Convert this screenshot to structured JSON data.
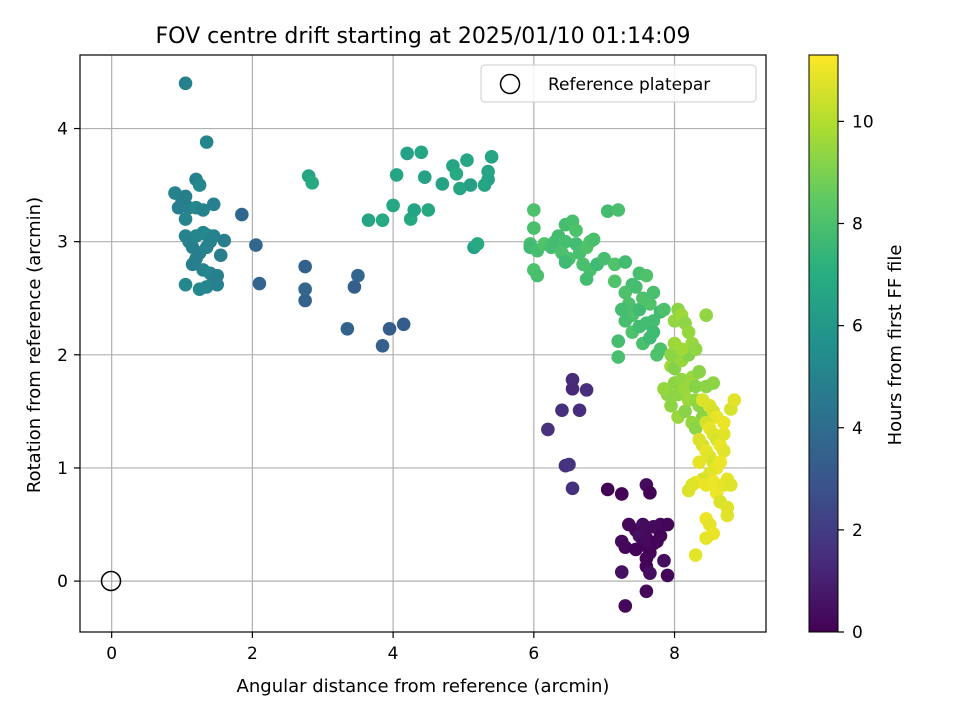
{
  "chart_data": {
    "type": "scatter",
    "title": "FOV centre drift starting at 2025/01/10 01:14:09",
    "xlabel": "Angular distance from reference (arcmin)",
    "ylabel": "Rotation from reference (arcmin)",
    "xlim": [
      -0.45,
      9.3
    ],
    "ylim": [
      -0.45,
      4.65
    ],
    "xticks": [
      "0",
      "2",
      "4",
      "6",
      "8"
    ],
    "yticks": [
      "0",
      "1",
      "2",
      "3",
      "4"
    ],
    "grid": true,
    "legend": {
      "position": "top-right",
      "entries": [
        "Reference platepar"
      ]
    },
    "reference_point": {
      "x": 0,
      "y": 0
    },
    "colorbar": {
      "label": "Hours from first FF file",
      "colormap": "viridis",
      "range": [
        0,
        11.3
      ],
      "ticks": [
        "0",
        "2",
        "4",
        "6",
        "8",
        "10"
      ]
    },
    "clusters": [
      {
        "t": 0.3,
        "points": [
          [
            7.05,
            0.81
          ],
          [
            7.25,
            0.77
          ],
          [
            7.6,
            0.85
          ],
          [
            7.65,
            0.78
          ],
          [
            7.35,
            0.5
          ],
          [
            7.45,
            0.45
          ],
          [
            7.5,
            0.4
          ],
          [
            7.55,
            0.5
          ],
          [
            7.6,
            0.47
          ],
          [
            7.7,
            0.48
          ],
          [
            7.8,
            0.5
          ],
          [
            7.9,
            0.5
          ],
          [
            7.25,
            0.35
          ],
          [
            7.3,
            0.3
          ],
          [
            7.55,
            0.32
          ],
          [
            7.6,
            0.38
          ],
          [
            7.7,
            0.33
          ],
          [
            7.75,
            0.35
          ],
          [
            7.6,
            0.2
          ],
          [
            7.65,
            0.25
          ],
          [
            7.6,
            0.13
          ],
          [
            7.85,
            0.18
          ],
          [
            7.25,
            0.08
          ],
          [
            7.65,
            0.07
          ],
          [
            7.9,
            0.05
          ],
          [
            7.6,
            -0.09
          ],
          [
            7.3,
            -0.22
          ],
          [
            7.8,
            0.4
          ],
          [
            7.45,
            0.28
          ]
        ]
      },
      {
        "t": 1.5,
        "points": [
          [
            6.2,
            1.34
          ],
          [
            6.45,
            1.02
          ],
          [
            6.5,
            1.03
          ],
          [
            6.55,
            0.82
          ],
          [
            6.4,
            1.51
          ],
          [
            6.65,
            1.51
          ],
          [
            6.55,
            1.7
          ],
          [
            6.55,
            1.78
          ],
          [
            6.75,
            1.69
          ]
        ]
      },
      {
        "t": 3.5,
        "points": [
          [
            3.35,
            2.23
          ],
          [
            3.85,
            2.08
          ],
          [
            3.95,
            2.23
          ],
          [
            4.15,
            2.27
          ],
          [
            3.45,
            2.6
          ],
          [
            3.5,
            2.7
          ],
          [
            2.75,
            2.48
          ],
          [
            2.75,
            2.58
          ],
          [
            2.75,
            2.78
          ],
          [
            2.1,
            2.63
          ],
          [
            2.05,
            2.97
          ],
          [
            1.85,
            3.24
          ]
        ]
      },
      {
        "t": 5.0,
        "points": [
          [
            0.9,
            3.43
          ],
          [
            0.95,
            3.3
          ],
          [
            1.0,
            3.35
          ],
          [
            1.05,
            3.4
          ],
          [
            1.1,
            3.3
          ],
          [
            1.05,
            3.2
          ],
          [
            1.2,
            3.55
          ],
          [
            1.25,
            3.5
          ],
          [
            1.2,
            3.3
          ],
          [
            1.3,
            3.28
          ],
          [
            1.05,
            3.05
          ],
          [
            1.1,
            3.0
          ],
          [
            1.15,
            2.95
          ],
          [
            1.2,
            3.05
          ],
          [
            1.3,
            3.08
          ],
          [
            1.35,
            3.06
          ],
          [
            1.4,
            3.0
          ],
          [
            1.45,
            3.05
          ],
          [
            1.25,
            2.9
          ],
          [
            1.35,
            2.95
          ],
          [
            1.15,
            2.8
          ],
          [
            1.2,
            2.85
          ],
          [
            1.3,
            2.75
          ],
          [
            1.4,
            2.72
          ],
          [
            1.45,
            2.65
          ],
          [
            1.5,
            2.7
          ],
          [
            1.05,
            2.62
          ],
          [
            1.25,
            2.58
          ],
          [
            1.35,
            2.6
          ],
          [
            1.5,
            2.62
          ],
          [
            1.55,
            2.88
          ],
          [
            1.6,
            3.01
          ],
          [
            1.45,
            3.33
          ],
          [
            1.35,
            3.88
          ],
          [
            1.05,
            4.4
          ]
        ]
      },
      {
        "t": 6.6,
        "points": [
          [
            2.8,
            3.58
          ],
          [
            2.85,
            3.52
          ],
          [
            3.65,
            3.19
          ],
          [
            3.85,
            3.19
          ],
          [
            4.05,
            3.59
          ],
          [
            4.0,
            3.32
          ],
          [
            4.25,
            3.2
          ],
          [
            4.3,
            3.28
          ],
          [
            4.5,
            3.28
          ],
          [
            4.2,
            3.78
          ],
          [
            4.4,
            3.79
          ],
          [
            4.45,
            3.57
          ],
          [
            4.7,
            3.51
          ],
          [
            4.85,
            3.67
          ],
          [
            4.95,
            3.47
          ],
          [
            4.9,
            3.6
          ],
          [
            5.05,
            3.72
          ],
          [
            5.1,
            3.5
          ],
          [
            5.15,
            2.95
          ],
          [
            5.2,
            2.98
          ],
          [
            5.35,
            3.55
          ],
          [
            5.35,
            3.62
          ],
          [
            5.4,
            3.75
          ],
          [
            5.3,
            3.5
          ]
        ]
      },
      {
        "t": 7.9,
        "points": [
          [
            6.0,
            3.28
          ],
          [
            6.0,
            3.12
          ],
          [
            5.95,
            2.98
          ],
          [
            5.95,
            2.95
          ],
          [
            6.05,
            2.92
          ],
          [
            6.15,
            2.98
          ],
          [
            6.25,
            2.95
          ],
          [
            6.3,
            3.0
          ],
          [
            6.35,
            3.05
          ],
          [
            6.45,
            3.0
          ],
          [
            6.4,
            2.9
          ],
          [
            6.5,
            2.85
          ],
          [
            6.6,
            2.98
          ],
          [
            6.65,
            2.9
          ],
          [
            6.75,
            2.95
          ],
          [
            6.8,
            3.0
          ],
          [
            6.85,
            3.02
          ],
          [
            6.7,
            2.8
          ],
          [
            6.8,
            2.75
          ],
          [
            6.9,
            2.8
          ],
          [
            7.0,
            2.85
          ],
          [
            6.75,
            2.67
          ],
          [
            6.45,
            3.15
          ],
          [
            6.55,
            3.18
          ],
          [
            6.6,
            3.1
          ],
          [
            6.0,
            2.75
          ],
          [
            6.05,
            2.7
          ],
          [
            6.45,
            2.82
          ],
          [
            7.05,
            3.27
          ],
          [
            7.2,
            3.28
          ],
          [
            7.15,
            2.8
          ],
          [
            7.3,
            2.82
          ],
          [
            7.15,
            2.65
          ],
          [
            7.4,
            2.62
          ],
          [
            7.5,
            2.72
          ],
          [
            7.6,
            2.7
          ],
          [
            7.3,
            2.55
          ],
          [
            7.35,
            2.45
          ],
          [
            7.4,
            2.35
          ],
          [
            7.5,
            2.4
          ],
          [
            7.55,
            2.5
          ],
          [
            7.65,
            2.45
          ],
          [
            7.7,
            2.55
          ],
          [
            7.6,
            2.28
          ],
          [
            7.7,
            2.3
          ],
          [
            7.8,
            2.38
          ],
          [
            7.85,
            2.4
          ],
          [
            7.4,
            2.2
          ],
          [
            7.5,
            2.25
          ],
          [
            7.55,
            2.1
          ],
          [
            7.65,
            2.15
          ],
          [
            7.7,
            2.2
          ],
          [
            7.75,
            2.0
          ],
          [
            7.8,
            2.05
          ],
          [
            7.2,
            2.12
          ],
          [
            7.2,
            1.98
          ],
          [
            7.3,
            2.3
          ],
          [
            7.25,
            2.4
          ],
          [
            7.45,
            2.6
          ]
        ]
      },
      {
        "t": 9.4,
        "points": [
          [
            7.95,
            1.9
          ],
          [
            8.0,
            2.3
          ],
          [
            8.05,
            2.4
          ],
          [
            8.1,
            2.35
          ],
          [
            8.15,
            2.28
          ],
          [
            8.2,
            2.2
          ],
          [
            8.25,
            2.1
          ],
          [
            8.0,
            1.75
          ],
          [
            8.05,
            1.65
          ],
          [
            8.1,
            1.78
          ],
          [
            8.15,
            1.7
          ],
          [
            8.2,
            1.6
          ],
          [
            8.25,
            1.8
          ],
          [
            8.3,
            1.72
          ],
          [
            7.9,
            1.65
          ],
          [
            7.95,
            1.55
          ],
          [
            8.05,
            1.45
          ],
          [
            8.15,
            1.5
          ],
          [
            8.3,
            1.6
          ],
          [
            8.35,
            1.55
          ],
          [
            8.4,
            1.45
          ],
          [
            8.0,
            1.88
          ],
          [
            8.1,
            1.95
          ],
          [
            8.2,
            2.0
          ],
          [
            8.3,
            2.05
          ],
          [
            7.95,
            2.0
          ],
          [
            8.0,
            2.1
          ],
          [
            8.45,
            2.35
          ],
          [
            8.45,
            1.72
          ],
          [
            8.55,
            1.75
          ],
          [
            8.25,
            1.4
          ],
          [
            8.3,
            1.35
          ],
          [
            7.85,
            1.7
          ],
          [
            8.1,
            2.05
          ],
          [
            8.35,
            1.85
          ]
        ]
      },
      {
        "t": 10.8,
        "points": [
          [
            8.4,
            1.6
          ],
          [
            8.5,
            1.55
          ],
          [
            8.55,
            1.5
          ],
          [
            8.6,
            1.45
          ],
          [
            8.45,
            1.4
          ],
          [
            8.5,
            1.35
          ],
          [
            8.55,
            1.3
          ],
          [
            8.6,
            1.25
          ],
          [
            8.65,
            1.2
          ],
          [
            8.7,
            1.3
          ],
          [
            8.4,
            1.2
          ],
          [
            8.45,
            1.15
          ],
          [
            8.5,
            1.1
          ],
          [
            8.35,
            1.05
          ],
          [
            8.55,
            1.05
          ],
          [
            8.6,
            1.0
          ],
          [
            8.5,
            0.95
          ],
          [
            8.4,
            0.9
          ],
          [
            8.3,
            0.87
          ],
          [
            8.45,
            0.85
          ],
          [
            8.55,
            0.88
          ],
          [
            8.6,
            0.78
          ],
          [
            8.7,
            0.85
          ],
          [
            8.75,
            0.9
          ],
          [
            8.8,
            0.85
          ],
          [
            8.65,
            0.7
          ],
          [
            8.75,
            0.65
          ],
          [
            8.75,
            0.58
          ],
          [
            8.45,
            0.55
          ],
          [
            8.5,
            0.5
          ],
          [
            8.55,
            0.42
          ],
          [
            8.45,
            0.38
          ],
          [
            8.3,
            0.23
          ],
          [
            8.2,
            0.8
          ],
          [
            8.25,
            0.85
          ],
          [
            8.8,
            1.52
          ],
          [
            8.85,
            1.6
          ],
          [
            8.7,
            1.15
          ],
          [
            8.7,
            1.4
          ],
          [
            8.35,
            1.25
          ],
          [
            8.65,
            1.05
          ]
        ]
      }
    ]
  }
}
